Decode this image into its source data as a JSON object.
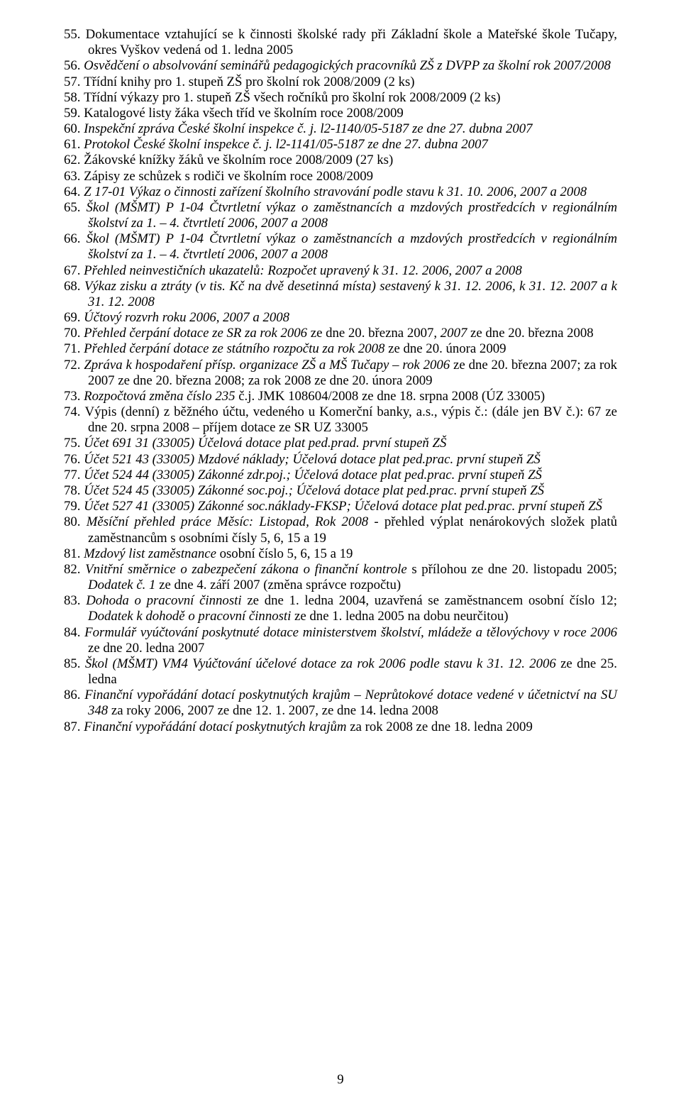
{
  "page_number": "9",
  "entries": [
    {
      "n": "55.",
      "segments": [
        {
          "text": "Dokumentace vztahující se k činnosti školské rady při Základní škole a Mateřské škole Tučapy, okres Vyškov vedená od 1. ledna 2005",
          "italic": false
        }
      ]
    },
    {
      "n": "56.",
      "segments": [
        {
          "text": "Osvědčení o absolvování seminářů pedagogických pracovníků ZŠ z DVPP za školní rok 2007/2008",
          "italic": true
        }
      ]
    },
    {
      "n": "57.",
      "segments": [
        {
          "text": "Třídní knihy pro 1. stupeň ZŠ pro školní rok 2008/2009 (2 ks)",
          "italic": false
        }
      ]
    },
    {
      "n": "58.",
      "segments": [
        {
          "text": "Třídní výkazy pro 1. stupeň ZŠ všech ročníků pro školní rok 2008/2009 (2 ks)",
          "italic": false
        }
      ]
    },
    {
      "n": "59.",
      "segments": [
        {
          "text": "Katalogové listy žáka všech tříd ve školním roce 2008/2009",
          "italic": false
        }
      ]
    },
    {
      "n": "60.",
      "segments": [
        {
          "text": "Inspekční zpráva České školní inspekce č. j. l2-1140/05-5187 ze dne 27. dubna 2007",
          "italic": true
        }
      ]
    },
    {
      "n": "61.",
      "segments": [
        {
          "text": "Protokol České školní inspekce č. j. l2-1141/05-5187 ze dne 27. dubna 2007",
          "italic": true
        }
      ]
    },
    {
      "n": "62.",
      "segments": [
        {
          "text": "Žákovské knížky žáků ve školním roce 2008/2009 (27 ks)",
          "italic": false
        }
      ]
    },
    {
      "n": "63.",
      "segments": [
        {
          "text": "Zápisy ze schůzek s rodiči ve školním roce 2008/2009",
          "italic": false
        }
      ]
    },
    {
      "n": "64.",
      "segments": [
        {
          "text": "Z 17-01 Výkaz o činnosti zařízení školního stravování podle stavu k 31. 10. 2006, 2007 a 2008",
          "italic": true
        }
      ]
    },
    {
      "n": "65.",
      "segments": [
        {
          "text": "Škol (MŠMT) P 1-04 Čtvrtletní výkaz o zaměstnancích a mzdových prostředcích v regionálním školství za 1. – 4. čtvrtletí 2006, 2007 a 2008",
          "italic": true
        }
      ]
    },
    {
      "n": "66.",
      "segments": [
        {
          "text": "Škol (MŠMT) P 1-04 Čtvrtletní výkaz o zaměstnancích a mzdových prostředcích v regionálním školství za 1. – 4. čtvrtletí 2006, 2007 a 2008",
          "italic": true
        }
      ]
    },
    {
      "n": "67.",
      "segments": [
        {
          "text": "Přehled neinvestičních ukazatelů: Rozpočet upravený k 31. 12. 2006, 2007 a 2008",
          "italic": true
        }
      ]
    },
    {
      "n": "68.",
      "segments": [
        {
          "text": "Výkaz zisku a ztráty (v tis. Kč na dvě desetinná místa) sestavený k 31. 12. 2006, k 31. 12. 2007 a k 31. 12. 2008",
          "italic": true
        }
      ]
    },
    {
      "n": "69.",
      "segments": [
        {
          "text": "Účtový rozvrh roku 2006, 2007 a 2008",
          "italic": true
        }
      ]
    },
    {
      "n": "70.",
      "segments": [
        {
          "text": "Přehled čerpání dotace ze SR za rok 2006 ",
          "italic": true
        },
        {
          "text": "ze dne 20. března 2007, ",
          "italic": false
        },
        {
          "text": "2007 ",
          "italic": true
        },
        {
          "text": "ze dne 20. března 2008",
          "italic": false
        }
      ]
    },
    {
      "n": "71.",
      "segments": [
        {
          "text": "Přehled čerpání dotace ze státního rozpočtu za rok 2008 ",
          "italic": true
        },
        {
          "text": "ze dne 20. února 2009",
          "italic": false
        }
      ]
    },
    {
      "n": "72.",
      "segments": [
        {
          "text": "Zpráva k hospodaření přísp. organizace ZŠ a MŠ Tučapy – rok 2006 ",
          "italic": true
        },
        {
          "text": "ze dne 20. března 2007; za rok 2007 ze dne 20. března 2008; za rok 2008 ze dne 20. února 2009",
          "italic": false
        }
      ]
    },
    {
      "n": "73.",
      "segments": [
        {
          "text": "Rozpočtová změna číslo 235 ",
          "italic": true
        },
        {
          "text": "č.j. JMK 108604/2008 ze dne 18. srpna 2008 (ÚZ 33005)",
          "italic": false
        }
      ]
    },
    {
      "n": "74.",
      "segments": [
        {
          "text": "Výpis (denní) z běžného účtu, vedeného u Komerční banky, a.s., výpis č.: (dále jen BV č.): 67 ze dne 20. srpna 2008 – příjem dotace ze SR UZ 33005",
          "italic": false
        }
      ]
    },
    {
      "n": "75.",
      "segments": [
        {
          "text": "Účet 691 31 (33005) Účelová dotace plat ped.prad. první stupeň ZŠ",
          "italic": true
        }
      ]
    },
    {
      "n": "76.",
      "segments": [
        {
          "text": "Účet 521 43 (33005) Mzdové náklady; Účelová dotace plat ped.prac. první stupeň ZŠ",
          "italic": true
        }
      ]
    },
    {
      "n": "77.",
      "segments": [
        {
          "text": "Účet 524 44 (33005) Zákonné zdr.poj.; Účelová dotace plat ped.prac. první stupeň ZŠ",
          "italic": true
        }
      ]
    },
    {
      "n": "78.",
      "segments": [
        {
          "text": "Účet 524 45 (33005) Zákonné soc.poj.; Účelová dotace plat ped.prac. první stupeň ZŠ",
          "italic": true
        }
      ]
    },
    {
      "n": "79.",
      "segments": [
        {
          "text": "Účet 527 41 (33005) Zákonné soc.náklady-FKSP; Účelová dotace plat ped.prac. první stupeň ZŠ",
          "italic": true
        }
      ]
    },
    {
      "n": "80.",
      "segments": [
        {
          "text": "Měsíční přehled práce Měsíc: Listopad, Rok 2008 ",
          "italic": true
        },
        {
          "text": "- přehled výplat nenárokových složek platů zaměstnancům s osobními čísly 5, 6, 15 a 19",
          "italic": false
        }
      ]
    },
    {
      "n": "81.",
      "segments": [
        {
          "text": "Mzdový list zaměstnance ",
          "italic": true
        },
        {
          "text": "osobní číslo 5, 6, 15 a 19",
          "italic": false
        }
      ]
    },
    {
      "n": "82.",
      "segments": [
        {
          "text": "Vnitřní směrnice o zabezpečení zákona o finanční kontrole ",
          "italic": true
        },
        {
          "text": "s přílohou ze dne 20. listopadu 2005; ",
          "italic": false
        },
        {
          "text": "Dodatek č. 1 ",
          "italic": true
        },
        {
          "text": "ze dne 4. září 2007 (změna správce rozpočtu)",
          "italic": false
        }
      ]
    },
    {
      "n": "83.",
      "segments": [
        {
          "text": "Dohoda o pracovní činnosti ",
          "italic": true
        },
        {
          "text": "ze dne 1. ledna 2004, uzavřená se zaměstnancem osobní číslo 12; ",
          "italic": false
        },
        {
          "text": "Dodatek k dohodě o pracovní činnosti ",
          "italic": true
        },
        {
          "text": "ze dne 1. ledna 2005 na dobu neurčitou)",
          "italic": false
        }
      ]
    },
    {
      "n": "84.",
      "segments": [
        {
          "text": "Formulář vyúčtování poskytnuté dotace ministerstvem školství, mládeže a tělovýchovy v roce 2006 ",
          "italic": true
        },
        {
          "text": "ze dne 20. ledna 2007",
          "italic": false
        }
      ]
    },
    {
      "n": "85.",
      "segments": [
        {
          "text": "Škol (MŠMT) VM4 Vyúčtování účelové dotace za rok 2006 podle stavu k 31. 12. 2006 ",
          "italic": true
        },
        {
          "text": "ze dne 25. ledna",
          "italic": false
        }
      ]
    },
    {
      "n": "86.",
      "segments": [
        {
          "text": "Finanční vypořádání dotací poskytnutých krajům – Neprůtokové dotace vedené v účetnictví na SU 348 ",
          "italic": true
        },
        {
          "text": "za roky 2006, 2007 ze dne 12. 1. 2007, ze dne 14. ledna 2008",
          "italic": false
        }
      ]
    },
    {
      "n": "87.",
      "segments": [
        {
          "text": "Finanční vypořádání dotací poskytnutých krajům ",
          "italic": true
        },
        {
          "text": "za rok 2008 ze dne 18. ledna 2009",
          "italic": false
        }
      ]
    }
  ]
}
